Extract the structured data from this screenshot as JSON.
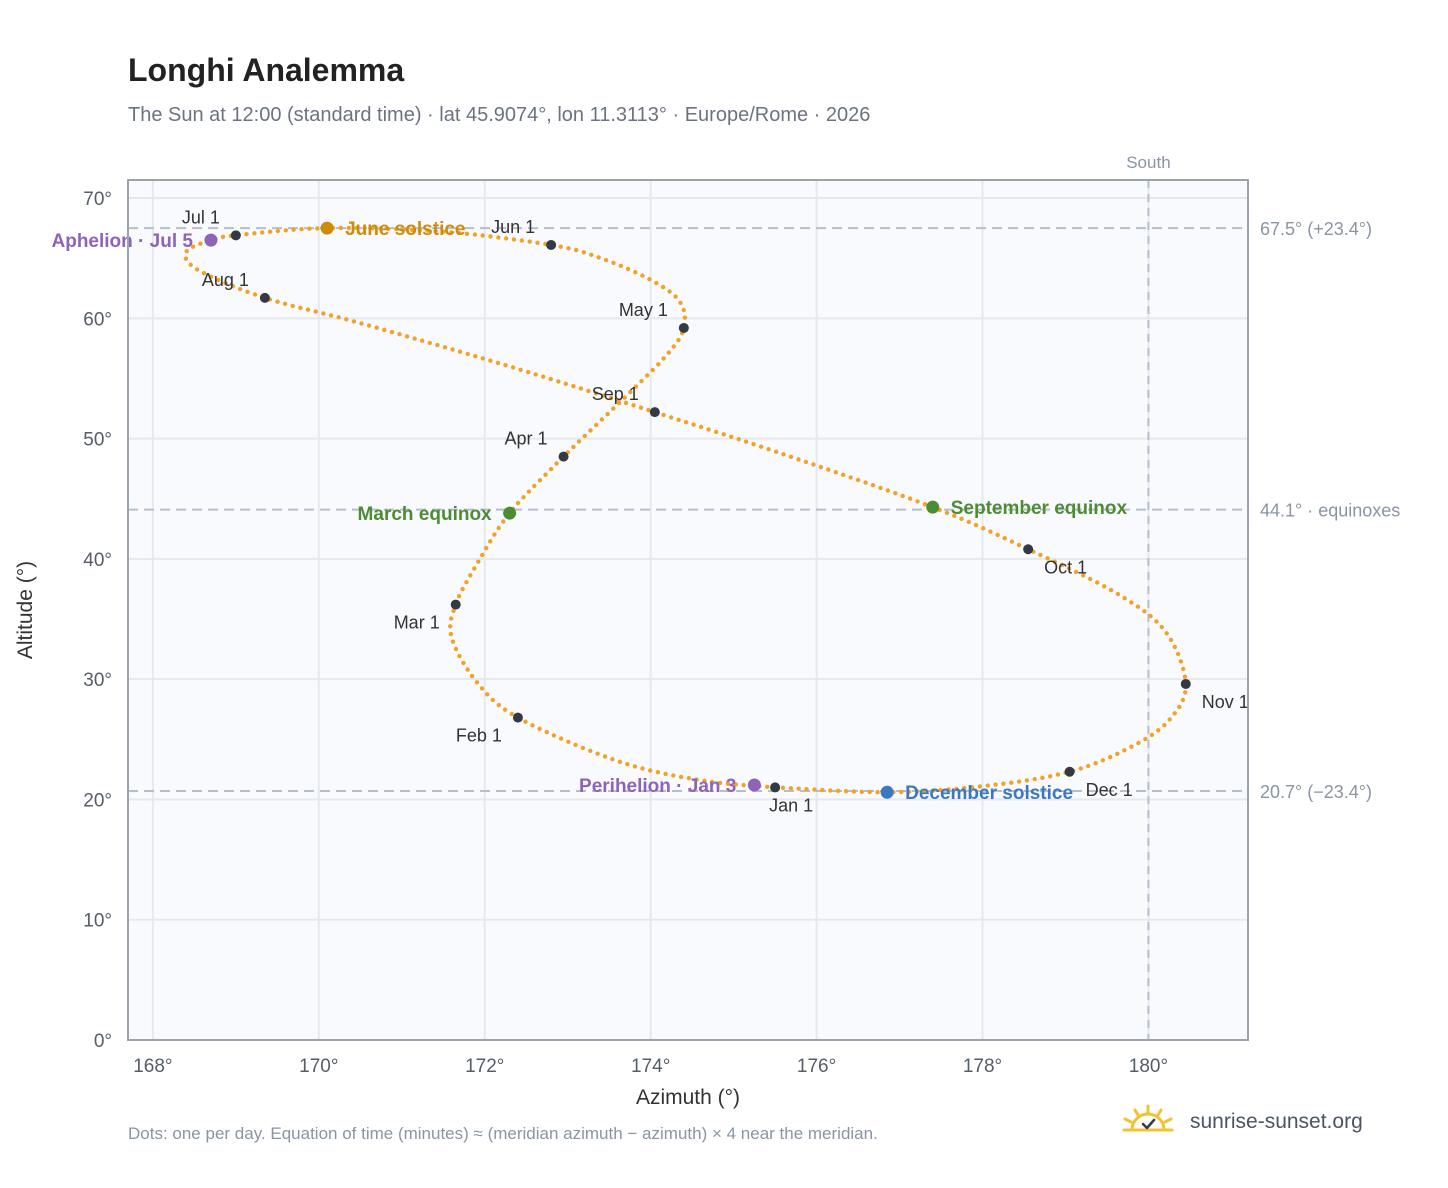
{
  "title": "Longhi Analemma",
  "subtitle": "The Sun at 12:00 (standard time) · lat 45.9074°, lon 11.3113° · Europe/Rome · 2026",
  "footnote": "Dots: one per day. Equation of time (minutes) ≈ (meridian azimuth − azimuth) × 4 near the meridian.",
  "brand": "sunrise-sunset.org",
  "colors": {
    "path": "#f2a227",
    "month_dot": "#343a45",
    "aphelion": "#8e63b8",
    "june_solstice": "#cf8b0c",
    "equinox": "#4e8c34",
    "december_solstice": "#3a78c2",
    "grid": "#e5e9ef",
    "plot_bg": "#f8fafd",
    "frame": "#9aa3b0",
    "ref_line": "#b4bfcb"
  },
  "chart_data": {
    "type": "scatter",
    "xlabel": "Azimuth (°)",
    "ylabel": "Altitude (°)",
    "xlim": [
      167.7,
      181.2
    ],
    "ylim": [
      0,
      71.5
    ],
    "x_ticks": [
      {
        "value": 168,
        "label": "168°"
      },
      {
        "value": 170,
        "label": "170°"
      },
      {
        "value": 172,
        "label": "172°"
      },
      {
        "value": 174,
        "label": "174°"
      },
      {
        "value": 176,
        "label": "176°"
      },
      {
        "value": 178,
        "label": "178°"
      },
      {
        "value": 180,
        "label": "180°"
      }
    ],
    "y_ticks": [
      {
        "value": 0,
        "label": "0°"
      },
      {
        "value": 10,
        "label": "10°"
      },
      {
        "value": 20,
        "label": "20°"
      },
      {
        "value": 30,
        "label": "30°"
      },
      {
        "value": 40,
        "label": "40°"
      },
      {
        "value": 50,
        "label": "50°"
      },
      {
        "value": 60,
        "label": "60°"
      },
      {
        "value": 70,
        "label": "70°"
      }
    ],
    "grid": true,
    "south_line": {
      "value": 180,
      "label": "South"
    },
    "reference_lines": [
      {
        "value": 67.5,
        "label": "67.5° (+23.4°)"
      },
      {
        "value": 44.1,
        "label": "44.1° · equinoxes"
      },
      {
        "value": 20.7,
        "label": "20.7° (−23.4°)"
      }
    ],
    "month_points": [
      {
        "label": "Jan 1",
        "x": 175.5,
        "y": 21.0,
        "pos": "below"
      },
      {
        "label": "Feb 1",
        "x": 172.4,
        "y": 26.8,
        "pos": "below-left"
      },
      {
        "label": "Mar 1",
        "x": 171.65,
        "y": 36.2,
        "pos": "below-left"
      },
      {
        "label": "Apr 1",
        "x": 172.95,
        "y": 48.5,
        "pos": "above-left"
      },
      {
        "label": "May 1",
        "x": 174.4,
        "y": 59.2,
        "pos": "above-left"
      },
      {
        "label": "Jun 1",
        "x": 172.8,
        "y": 66.1,
        "pos": "above-left"
      },
      {
        "label": "Jul 1",
        "x": 169.0,
        "y": 66.9,
        "pos": "above-left"
      },
      {
        "label": "Aug 1",
        "x": 169.35,
        "y": 61.7,
        "pos": "above-left"
      },
      {
        "label": "Sep 1",
        "x": 174.05,
        "y": 52.2,
        "pos": "above-left"
      },
      {
        "label": "Oct 1",
        "x": 178.55,
        "y": 40.8,
        "pos": "below-right"
      },
      {
        "label": "Nov 1",
        "x": 180.45,
        "y": 29.6,
        "pos": "below-right"
      },
      {
        "label": "Dec 1",
        "x": 179.05,
        "y": 22.3,
        "pos": "below-right"
      }
    ],
    "events": [
      {
        "label": "Aphelion · Jul 5",
        "x": 168.7,
        "y": 66.5,
        "color_key": "aphelion",
        "pos": "left"
      },
      {
        "label": "June solstice",
        "x": 170.1,
        "y": 67.5,
        "color_key": "june_solstice",
        "pos": "right"
      },
      {
        "label": "March equinox",
        "x": 172.3,
        "y": 43.8,
        "color_key": "equinox",
        "pos": "left"
      },
      {
        "label": "September equinox",
        "x": 177.4,
        "y": 44.3,
        "color_key": "equinox",
        "pos": "right"
      },
      {
        "label": "Perihelion · Jan 3",
        "x": 175.25,
        "y": 21.2,
        "color_key": "aphelion",
        "pos": "left"
      },
      {
        "label": "December solstice",
        "x": 176.85,
        "y": 20.6,
        "color_key": "december_solstice",
        "pos": "right"
      }
    ],
    "curve": [
      [
        175.5,
        21.0
      ],
      [
        174.6,
        21.6
      ],
      [
        173.6,
        23.2
      ],
      [
        172.4,
        26.8
      ],
      [
        171.9,
        29.8
      ],
      [
        171.6,
        33.5
      ],
      [
        171.65,
        36.2
      ],
      [
        171.9,
        39.5
      ],
      [
        172.3,
        43.8
      ],
      [
        172.95,
        48.5
      ],
      [
        173.7,
        53.5
      ],
      [
        174.2,
        57.0
      ],
      [
        174.4,
        59.2
      ],
      [
        174.35,
        61.4
      ],
      [
        174.0,
        63.2
      ],
      [
        173.4,
        65.0
      ],
      [
        172.8,
        66.1
      ],
      [
        171.5,
        67.2
      ],
      [
        170.1,
        67.5
      ],
      [
        169.0,
        66.9
      ],
      [
        168.7,
        66.5
      ],
      [
        168.4,
        65.5
      ],
      [
        168.55,
        64.0
      ],
      [
        169.35,
        61.7
      ],
      [
        170.5,
        59.6
      ],
      [
        172.3,
        56.0
      ],
      [
        174.05,
        52.2
      ],
      [
        175.6,
        48.7
      ],
      [
        177.4,
        44.3
      ],
      [
        178.55,
        40.8
      ],
      [
        179.6,
        37.2
      ],
      [
        180.2,
        34.0
      ],
      [
        180.45,
        29.6
      ],
      [
        180.25,
        26.6
      ],
      [
        179.8,
        24.4
      ],
      [
        179.05,
        22.3
      ],
      [
        178.0,
        21.1
      ],
      [
        176.85,
        20.6
      ],
      [
        175.5,
        21.0
      ]
    ]
  }
}
